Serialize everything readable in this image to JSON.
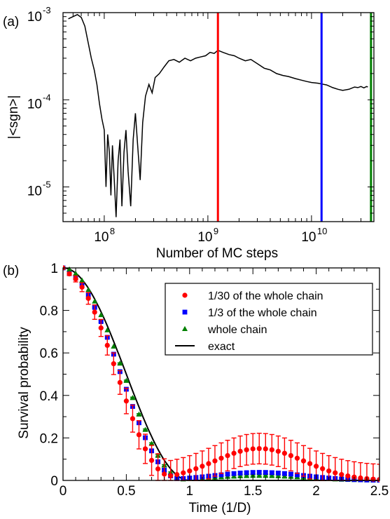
{
  "chart_data": [
    {
      "panel_label": "(a)",
      "type": "line",
      "xlabel": "Number of MC steps",
      "ylabel": "|<sgn>|",
      "x_scale": "log",
      "y_scale": "log",
      "xlim": [
        40000000,
        40000000000
      ],
      "ylim": [
        4e-06,
        0.001
      ],
      "x_ticks": [
        {
          "value": 100000000,
          "base": "10",
          "exp": "8"
        },
        {
          "value": 1000000000,
          "base": "10",
          "exp": "9"
        },
        {
          "value": 10000000000,
          "base": "10",
          "exp": "10"
        }
      ],
      "y_ticks": [
        {
          "value": 0.001,
          "base": "10",
          "exp": "-3"
        },
        {
          "value": 0.0001,
          "base": "10",
          "exp": "-4"
        },
        {
          "value": 1e-05,
          "base": "10",
          "exp": "-5"
        }
      ],
      "vertical_lines": [
        {
          "x": 1250000000,
          "color": "#ff0000"
        },
        {
          "x": 12500000000,
          "color": "#0000ff"
        },
        {
          "x": 37500000000,
          "color": "#008000"
        }
      ],
      "series": [
        {
          "color": "#000000",
          "points": [
            [
              45000000,
              0.00085
            ],
            [
              50000000,
              0.0009
            ],
            [
              55000000,
              0.00095
            ],
            [
              60000000,
              0.00088
            ],
            [
              65000000,
              0.0007
            ],
            [
              70000000,
              0.00045
            ],
            [
              75000000,
              0.0003
            ],
            [
              80000000,
              0.00022
            ],
            [
              85000000,
              0.00015
            ],
            [
              90000000,
              9e-05
            ],
            [
              95000000,
              6e-05
            ],
            [
              100000000,
              4.5e-05
            ],
            [
              104000000,
              1e-05
            ],
            [
              108000000,
              4e-05
            ],
            [
              112000000,
              2.5e-05
            ],
            [
              116000000,
              8e-06
            ],
            [
              120000000,
              3e-05
            ],
            [
              125000000,
              1.2e-05
            ],
            [
              130000000,
              4.5e-06
            ],
            [
              136000000,
              2e-05
            ],
            [
              142000000,
              3.5e-05
            ],
            [
              148000000,
              6e-06
            ],
            [
              155000000,
              2.5e-05
            ],
            [
              162000000,
              4.5e-05
            ],
            [
              170000000,
              1.5e-05
            ],
            [
              180000000,
              6e-06
            ],
            [
              190000000,
              3.5e-05
            ],
            [
              200000000,
              7e-05
            ],
            [
              210000000,
              3e-05
            ],
            [
              222000000,
              1.2e-05
            ],
            [
              235000000,
              5.5e-05
            ],
            [
              250000000,
              0.00011
            ],
            [
              270000000,
              0.00015
            ],
            [
              290000000,
              0.00012
            ],
            [
              310000000,
              0.00018
            ],
            [
              340000000,
              0.0002
            ],
            [
              380000000,
              0.00024
            ],
            [
              420000000,
              0.00028
            ],
            [
              470000000,
              0.00029
            ],
            [
              530000000,
              0.00027
            ],
            [
              600000000,
              0.0003
            ],
            [
              680000000,
              0.00028
            ],
            [
              760000000,
              0.0003
            ],
            [
              850000000,
              0.00031
            ],
            [
              950000000,
              0.00032
            ],
            [
              1050000000,
              0.00035
            ],
            [
              1150000000,
              0.00034
            ],
            [
              1250000000,
              0.00037
            ],
            [
              1400000000,
              0.00035
            ],
            [
              1600000000,
              0.00033
            ],
            [
              1800000000,
              0.00032
            ],
            [
              2000000000,
              0.0003
            ],
            [
              2300000000,
              0.00028
            ],
            [
              2600000000,
              0.00029
            ],
            [
              3000000000,
              0.00026
            ],
            [
              3500000000,
              0.00023
            ],
            [
              4000000000,
              0.00022
            ],
            [
              4600000000,
              0.0002
            ],
            [
              5300000000,
              0.00019
            ],
            [
              6000000000,
              0.000185
            ],
            [
              7000000000,
              0.000175
            ],
            [
              8000000000,
              0.000168
            ],
            [
              9000000000,
              0.000162
            ],
            [
              10000000000,
              0.000158
            ],
            [
              11500000000,
              0.000155
            ],
            [
              12500000000,
              0.000152
            ],
            [
              14000000000,
              0.000148
            ],
            [
              16000000000,
              0.000138
            ],
            [
              18000000000,
              0.000132
            ],
            [
              20000000000,
              0.000128
            ],
            [
              23000000000,
              0.000132
            ],
            [
              26000000000,
              0.00014
            ],
            [
              28000000000,
              0.000138
            ],
            [
              30000000000,
              0.000142
            ],
            [
              32000000000,
              0.000137
            ],
            [
              34000000000,
              0.000142
            ],
            [
              35000000000,
              0.00014
            ]
          ]
        }
      ]
    },
    {
      "panel_label": "(b)",
      "type": "scatter",
      "xlabel": "Time (1/D)",
      "ylabel": "Survival probability",
      "xlim": [
        0,
        2.5
      ],
      "ylim": [
        0,
        1
      ],
      "x_ticks": [
        "0",
        "0.5",
        "1",
        "1.5",
        "2",
        "2.5"
      ],
      "y_ticks": [
        "0",
        "0.2",
        "0.4",
        "0.6",
        "0.8",
        "1"
      ],
      "x_tick_values": [
        0,
        0.5,
        1,
        1.5,
        2,
        2.5
      ],
      "y_tick_values": [
        0,
        0.2,
        0.4,
        0.6,
        0.8,
        1
      ],
      "legend_position": "top-right",
      "series": [
        {
          "name": "1/30 of the whole chain",
          "marker": "circle",
          "color": "#ff0000",
          "shift": 0.155,
          "scale": 0.98,
          "bump": 0.15,
          "error": 0.072
        },
        {
          "name": "1/3 of the whole chain",
          "marker": "square",
          "color": "#0000ff",
          "shift": 0.08,
          "scale": 0.98,
          "bump": 0.038,
          "error": 0.007
        },
        {
          "name": "whole chain",
          "marker": "triangle",
          "color": "#008000",
          "shift": 0.04,
          "scale": 1.0,
          "bump": 0.022,
          "error": 0.004
        },
        {
          "name": "exact",
          "marker": "line",
          "color": "#000000"
        }
      ]
    }
  ]
}
